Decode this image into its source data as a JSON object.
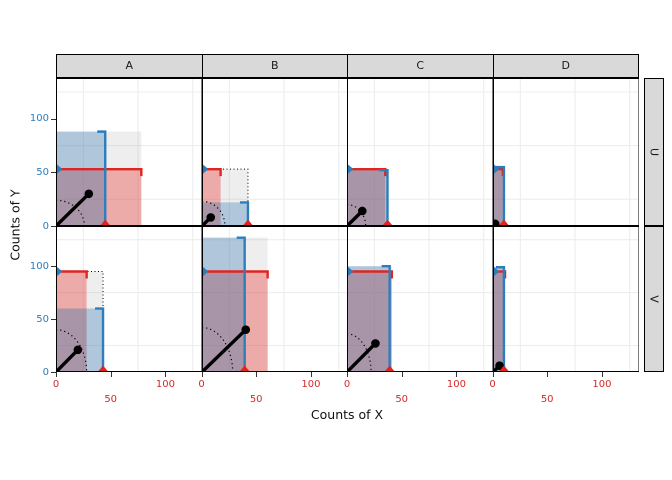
{
  "chart_data": {
    "type": "faceted_custom_summary_plot",
    "xlabel": "Counts of X",
    "ylabel": "Counts of Y",
    "facet_cols": [
      "A",
      "B",
      "C",
      "D"
    ],
    "facet_rows": [
      "U",
      "V"
    ],
    "x_range": [
      0,
      133
    ],
    "y_range": [
      0,
      138
    ],
    "x_ticks": [
      0,
      50,
      100
    ],
    "x_tick_rows": [
      [
        0,
        100
      ],
      [
        50
      ]
    ],
    "y_ticks": [
      0,
      50,
      100
    ],
    "x_minor_gridlines": [
      25,
      75,
      125
    ],
    "y_minor_gridlines": [
      25,
      75,
      125
    ],
    "legend": "none",
    "colors": {
      "blue_line": "#2d7dbc",
      "red_line": "#e02420",
      "x_tick_label": "#d42a2a",
      "y_tick_label": "#2d7dbc",
      "blue_fill": "rgba(60,125,184,0.35)",
      "red_fill": "rgba(233,60,57,0.38)",
      "gray_fill": "rgba(125,125,125,0.13)",
      "grid_minor": "#ececec",
      "strip_fill": "#d9d9d9",
      "strip_text": "#1a1a1a",
      "panel_border": "#000000",
      "black_geom": "#000000"
    },
    "panels": [
      {
        "col": "A",
        "row": "U",
        "blue_x": 45,
        "blue_h": 88,
        "red_w": 78,
        "red_y": 53,
        "point": [
          30,
          30
        ],
        "arc": [
          26,
          24
        ]
      },
      {
        "col": "B",
        "row": "U",
        "blue_x": 42,
        "blue_h": 22,
        "red_w": 17,
        "red_y": 53,
        "point": [
          8,
          8
        ],
        "arc": [
          21,
          23
        ]
      },
      {
        "col": "C",
        "row": "U",
        "blue_x": 37,
        "blue_h": 52,
        "red_w": 35,
        "red_y": 53,
        "point": [
          14,
          14
        ],
        "arc": [
          17,
          20
        ]
      },
      {
        "col": "D",
        "row": "U",
        "blue_x": 10,
        "blue_h": 55,
        "red_w": 9,
        "red_y": 53,
        "point": [
          2,
          2
        ],
        "arc": null
      },
      {
        "col": "A",
        "row": "V",
        "blue_x": 43,
        "blue_h": 60,
        "red_w": 28,
        "red_y": 95,
        "point": [
          20,
          21
        ],
        "arc": [
          28,
          40
        ]
      },
      {
        "col": "B",
        "row": "V",
        "blue_x": 39,
        "blue_h": 127,
        "red_w": 60,
        "red_y": 95,
        "point": [
          40,
          40
        ],
        "arc": [
          28,
          42
        ]
      },
      {
        "col": "C",
        "row": "V",
        "blue_x": 39,
        "blue_h": 100,
        "red_w": 41,
        "red_y": 95,
        "point": [
          26,
          27
        ],
        "arc": [
          22,
          36
        ]
      },
      {
        "col": "D",
        "row": "V",
        "blue_x": 10,
        "blue_h": 99,
        "red_w": 11,
        "red_y": 95,
        "point": [
          6,
          6
        ],
        "arc": null
      }
    ]
  }
}
